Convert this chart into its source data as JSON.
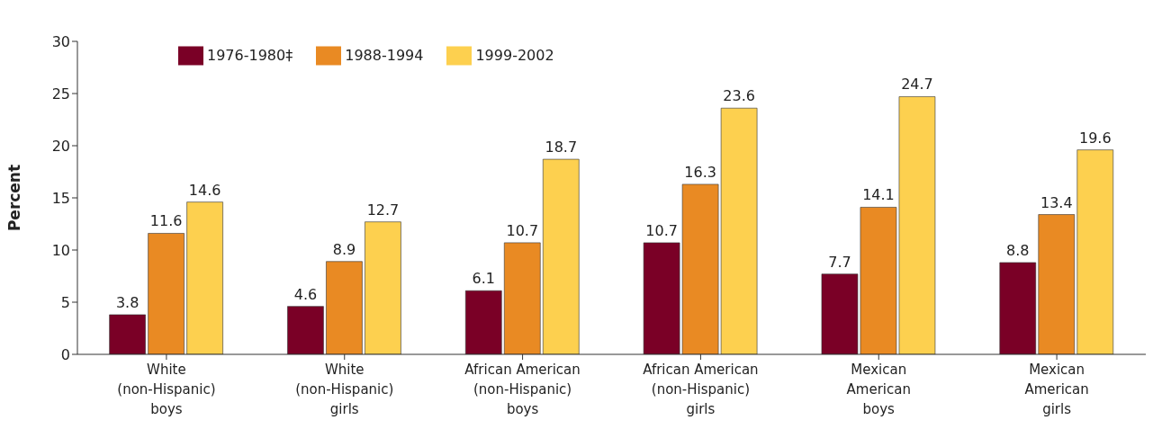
{
  "chart_data": {
    "type": "bar",
    "ylabel": "Percent",
    "categories": [
      "White\n(non-Hispanic)\nboys",
      "White\n(non-Hispanic)\ngirls",
      "African American\n(non-Hispanic)\nboys",
      "African American\n(non-Hispanic)\ngirls",
      "Mexican\nAmerican\nboys",
      "Mexican\nAmerican\ngirls"
    ],
    "series": [
      {
        "name": "1976-1980‡",
        "color": "#7a0026",
        "values": [
          3.8,
          4.6,
          6.1,
          10.7,
          7.7,
          8.8
        ]
      },
      {
        "name": "1988-1994",
        "color": "#e98a23",
        "values": [
          11.6,
          8.9,
          10.7,
          16.3,
          14.1,
          13.4
        ]
      },
      {
        "name": "1999-2002",
        "color": "#fdd04f",
        "values": [
          14.6,
          12.7,
          18.7,
          23.6,
          24.7,
          19.6
        ]
      }
    ],
    "ylim": [
      0,
      30
    ],
    "yticks": [
      0,
      5,
      10,
      15,
      20,
      25,
      30
    ],
    "grid": false,
    "legend": "top left",
    "data_labels": true
  }
}
